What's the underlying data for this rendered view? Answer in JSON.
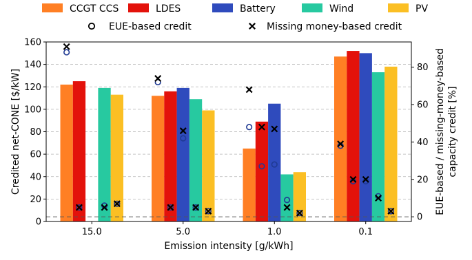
{
  "chart_data": {
    "type": "bar",
    "categories": [
      "15.0",
      "5.0",
      "1.0",
      "0.1"
    ],
    "xlabel": "Emission intensity [g/kWh]",
    "ylabel": "Credited net-CONE [$/kW]",
    "ylabel_right": [
      "EUE-based / missing-money-based",
      "capacity credit [%]"
    ],
    "ylim": [
      0,
      160
    ],
    "ylim_right": [
      -2.5,
      93.5
    ],
    "yticks": [
      0,
      20,
      40,
      60,
      80,
      100,
      120,
      140,
      160
    ],
    "yticks_right": [
      0,
      20,
      40,
      60,
      80
    ],
    "grid": "horizontal dashed",
    "legend_position": "top",
    "series": [
      {
        "name": "CCGT CCS",
        "color": "#ff7f24",
        "values": [
          122,
          112,
          65,
          147
        ]
      },
      {
        "name": "LDES",
        "color": "#e3120b",
        "values": [
          125,
          116,
          89,
          152
        ]
      },
      {
        "name": "Battery",
        "color": "#2f4bbd",
        "values": [
          null,
          119,
          105,
          150
        ]
      },
      {
        "name": "Wind",
        "color": "#27c9a0",
        "values": [
          119,
          109,
          42,
          133
        ]
      },
      {
        "name": "PV",
        "color": "#fbbf24",
        "values": [
          113,
          99,
          44,
          138
        ]
      }
    ],
    "markers": [
      {
        "name": "EUE-based credit",
        "symbol": "o",
        "values": [
          [
            88,
            5,
            null,
            6,
            7
          ],
          [
            72,
            5,
            42,
            5,
            3
          ],
          [
            48,
            27,
            28,
            9,
            2
          ],
          [
            38,
            19,
            19,
            11,
            3
          ]
        ]
      },
      {
        "name": "Missing money-based credit",
        "symbol": "x",
        "values": [
          [
            91,
            5,
            null,
            5,
            7
          ],
          [
            74,
            5,
            46,
            5,
            3
          ],
          [
            68,
            48,
            47,
            5,
            2
          ],
          [
            39,
            20,
            20,
            10,
            3
          ]
        ]
      }
    ]
  }
}
